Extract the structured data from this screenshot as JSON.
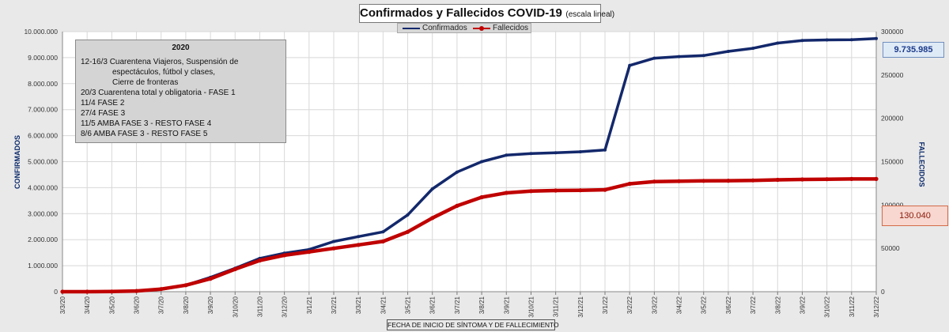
{
  "chart_data": {
    "type": "line",
    "title": "Confirmados  y Fallecidos COVID-19",
    "subtitle": "(escala lineal)",
    "xlabel": "FECHA DE INICIO DE SÍNTOMA Y DE FALLECIMIENTO",
    "ylabel_left": "CONFIRMADOS",
    "ylabel_right": "FALLECIDOS",
    "ylim_left": [
      0,
      10000000
    ],
    "ylim_right": [
      0,
      300000
    ],
    "yticks_left": [
      "0",
      "1.000.000",
      "2.000.000",
      "3.000.000",
      "4.000.000",
      "5.000.000",
      "6.000.000",
      "7.000.000",
      "8.000.000",
      "9.000.000",
      "10.000.000"
    ],
    "yticks_right": [
      "0",
      "50000",
      "100000",
      "150000",
      "200000",
      "250000",
      "300000"
    ],
    "x_dates": [
      "3/3/20",
      "3/4/20",
      "3/5/20",
      "3/6/20",
      "3/7/20",
      "3/8/20",
      "3/9/20",
      "3/10/20",
      "3/11/20",
      "3/12/20",
      "3/1/21",
      "3/2/21",
      "3/3/21",
      "3/4/21",
      "3/5/21",
      "3/6/21",
      "3/7/21",
      "3/8/21",
      "3/9/21",
      "3/10/21",
      "3/11/21",
      "3/12/21",
      "3/1/22",
      "3/2/22",
      "3/3/22",
      "3/4/22",
      "3/5/22",
      "3/6/22",
      "3/7/22",
      "3/8/22",
      "3/9/22",
      "3/10/22",
      "3/11/22",
      "3/12/22"
    ],
    "grid": true,
    "legend_placement": "top-center",
    "series": [
      {
        "name": "Confirmados",
        "axis": "left",
        "color": "#13286b",
        "values": [
          0,
          0,
          5000,
          20000,
          90000,
          250000,
          550000,
          900000,
          1280000,
          1480000,
          1620000,
          1930000,
          2120000,
          2300000,
          2950000,
          3950000,
          4600000,
          5000000,
          5250000,
          5310000,
          5340000,
          5380000,
          5450000,
          8700000,
          8980000,
          9040000,
          9080000,
          9240000,
          9360000,
          9560000,
          9660000,
          9680000,
          9690000,
          9735985
        ]
      },
      {
        "name": "Fallecidos",
        "axis": "right",
        "color": "#c00000",
        "values": [
          0,
          0,
          150,
          800,
          3000,
          7500,
          15000,
          26000,
          36000,
          42000,
          46000,
          50000,
          54000,
          58000,
          69000,
          85000,
          99000,
          109000,
          114000,
          116000,
          116700,
          117000,
          117500,
          124500,
          127000,
          127500,
          127800,
          128000,
          128400,
          129000,
          129500,
          129800,
          130000,
          130040
        ]
      }
    ]
  },
  "value_boxes": {
    "confirmados": "9.735.985",
    "fallecidos": "130.040"
  },
  "annotation": {
    "year": "2020",
    "lines": [
      "12-16/3  Cuarentena Viajeros, Suspensión de",
      "espectáculos, fútbol y clases,",
      "Cierre de fronteras",
      "20/3  Cuarentena total y obligatoria - FASE 1",
      "11/4  FASE 2",
      "27/4  FASE 3",
      "11/5  AMBA FASE 3 - RESTO FASE 4",
      "8/6  AMBA FASE 3 - RESTO FASE 5"
    ]
  },
  "colors": {
    "confirmados": "#13286b",
    "fallecidos": "#c00000",
    "background": "#e9e9e9",
    "plot": "#ffffff"
  }
}
